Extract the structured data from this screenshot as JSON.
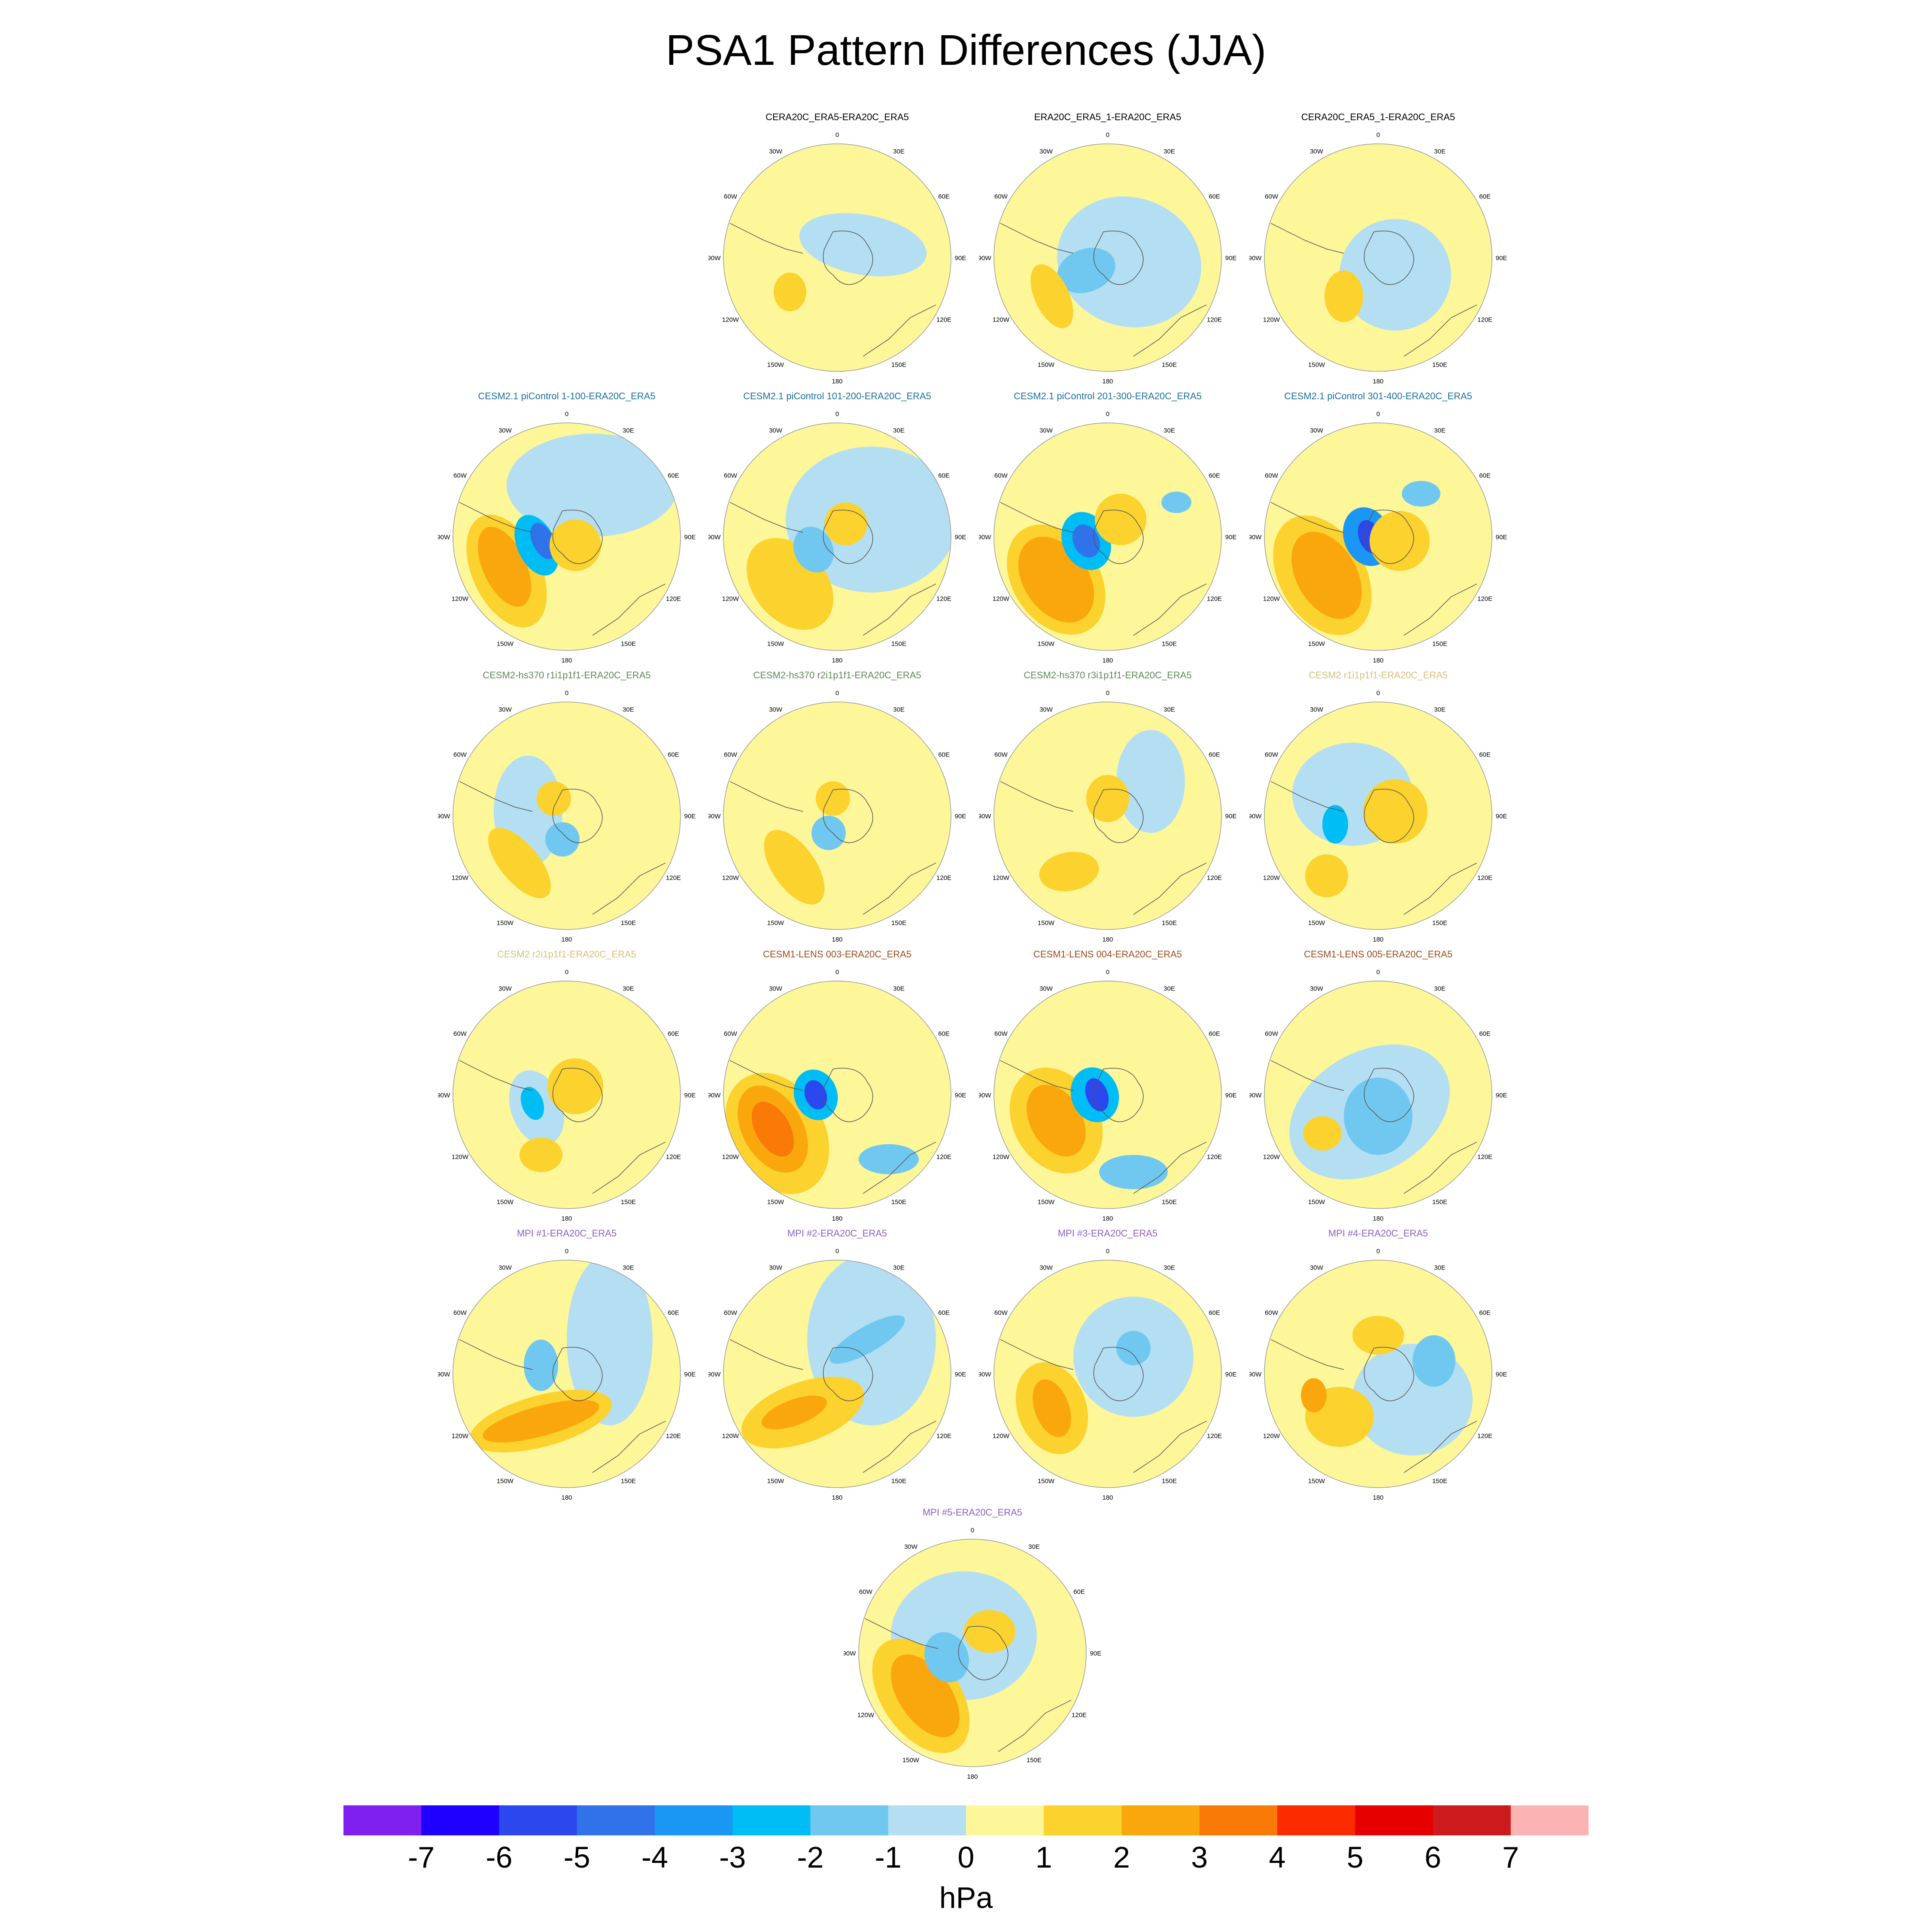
{
  "title": "PSA1 Pattern Differences (JJA)",
  "units": "hPa",
  "colorbar": {
    "labels": [
      "-7",
      "-6",
      "-5",
      "-4",
      "-3",
      "-2",
      "-1",
      "0",
      "1",
      "2",
      "3",
      "4",
      "5",
      "6",
      "7"
    ],
    "colors": [
      "#7f1ff0",
      "#1f00ff",
      "#2b47ee",
      "#2f72ea",
      "#1a96f5",
      "#00bdf5",
      "#70c8f0",
      "#b4dff2",
      "#fdf79a",
      "#fbd22e",
      "#faa70e",
      "#fa7a07",
      "#fb2c00",
      "#e60000",
      "#cd1a1c",
      "#fbb3b3"
    ]
  },
  "map_labels": [
    "0",
    "30E",
    "60E",
    "90E",
    "120E",
    "150E",
    "180",
    "150W",
    "120W",
    "90W",
    "60W",
    "30W"
  ],
  "panels": [
    {
      "title": "CERA20C_ERA5-ERA20C_ERA5",
      "title_color": "#000000",
      "row": 0,
      "col": 1
    },
    {
      "title": "ERA20C_ERA5_1-ERA20C_ERA5",
      "title_color": "#000000",
      "row": 0,
      "col": 2
    },
    {
      "title": "CERA20C_ERA5_1-ERA20C_ERA5",
      "title_color": "#000000",
      "row": 0,
      "col": 3
    },
    {
      "title": "CESM2.1 piControl 1-100-ERA20C_ERA5",
      "title_color": "#1a6fa0",
      "row": 1,
      "col": 0
    },
    {
      "title": "CESM2.1 piControl 101-200-ERA20C_ERA5",
      "title_color": "#1a6fa0",
      "row": 1,
      "col": 1
    },
    {
      "title": "CESM2.1 piControl 201-300-ERA20C_ERA5",
      "title_color": "#1a6fa0",
      "row": 1,
      "col": 2
    },
    {
      "title": "CESM2.1 piControl 301-400-ERA20C_ERA5",
      "title_color": "#1a6fa0",
      "row": 1,
      "col": 3
    },
    {
      "title": "CESM2-hs370 r1i1p1f1-ERA20C_ERA5",
      "title_color": "#5e8a58",
      "row": 2,
      "col": 0
    },
    {
      "title": "CESM2-hs370 r2i1p1f1-ERA20C_ERA5",
      "title_color": "#5e8a58",
      "row": 2,
      "col": 1
    },
    {
      "title": "CESM2-hs370 r3i1p1f1-ERA20C_ERA5",
      "title_color": "#5e8a58",
      "row": 2,
      "col": 2
    },
    {
      "title": "CESM2 r1i1p1f1-ERA20C_ERA5",
      "title_color": "#d8c078",
      "row": 2,
      "col": 3
    },
    {
      "title": "CESM2 r2i1p1f1-ERA20C_ERA5",
      "title_color": "#d8c078",
      "row": 3,
      "col": 0
    },
    {
      "title": "CESM1-LENS 003-ERA20C_ERA5",
      "title_color": "#a04a1a",
      "row": 3,
      "col": 1
    },
    {
      "title": "CESM1-LENS 004-ERA20C_ERA5",
      "title_color": "#a04a1a",
      "row": 3,
      "col": 2
    },
    {
      "title": "CESM1-LENS 005-ERA20C_ERA5",
      "title_color": "#a04a1a",
      "row": 3,
      "col": 3
    },
    {
      "title": "MPI #1-ERA20C_ERA5",
      "title_color": "#8a60c8",
      "row": 4,
      "col": 0
    },
    {
      "title": "MPI #2-ERA20C_ERA5",
      "title_color": "#8a60c8",
      "row": 4,
      "col": 1
    },
    {
      "title": "MPI #3-ERA20C_ERA5",
      "title_color": "#8a60c8",
      "row": 4,
      "col": 2
    },
    {
      "title": "MPI #4-ERA20C_ERA5",
      "title_color": "#8a60c8",
      "row": 4,
      "col": 3
    },
    {
      "title": "MPI #5-ERA20C_ERA5",
      "title_color": "#8a60c8",
      "row": 5,
      "col": 1.5
    }
  ]
}
